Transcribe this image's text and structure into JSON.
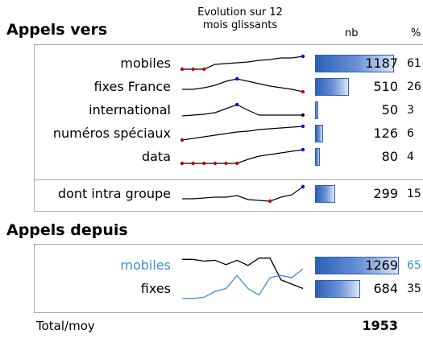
{
  "sections": {
    "appels_vers": "Appels vers",
    "appels_depuis": "Appels depuis"
  },
  "headers": {
    "trend": "Evolution sur 12 mois glissants",
    "nb": "nb",
    "pct": "%"
  },
  "appels_vers": {
    "rows": [
      {
        "label": "mobiles",
        "nb": "1187",
        "pct": "61",
        "bar": 0.94
      },
      {
        "label": "fixes France",
        "nb": "510",
        "pct": "26",
        "bar": 0.4
      },
      {
        "label": "international",
        "nb": "50",
        "pct": "3",
        "bar": 0.04
      },
      {
        "label": "numéros spéciaux",
        "nb": "126",
        "pct": "6",
        "bar": 0.1
      },
      {
        "label": "data",
        "nb": "80",
        "pct": "4",
        "bar": 0.06
      }
    ],
    "intra": {
      "label": "dont intra groupe",
      "nb": "299",
      "pct": "15",
      "bar": 0.24
    }
  },
  "appels_depuis": {
    "rows": [
      {
        "label": "mobiles",
        "nb": "1269",
        "pct": "65",
        "bar": 1.0,
        "color": "#3d8fd6"
      },
      {
        "label": "fixes",
        "nb": "684",
        "pct": "35",
        "bar": 0.54,
        "color": "#000000"
      }
    ]
  },
  "total": {
    "label": "Total/moy",
    "nb": "1953"
  },
  "colors": {
    "bar": "#3a6cc4",
    "highlight_max": "#0000ff",
    "highlight_min": "#cc0000",
    "mobiles_series": "#3d8fd6"
  }
}
